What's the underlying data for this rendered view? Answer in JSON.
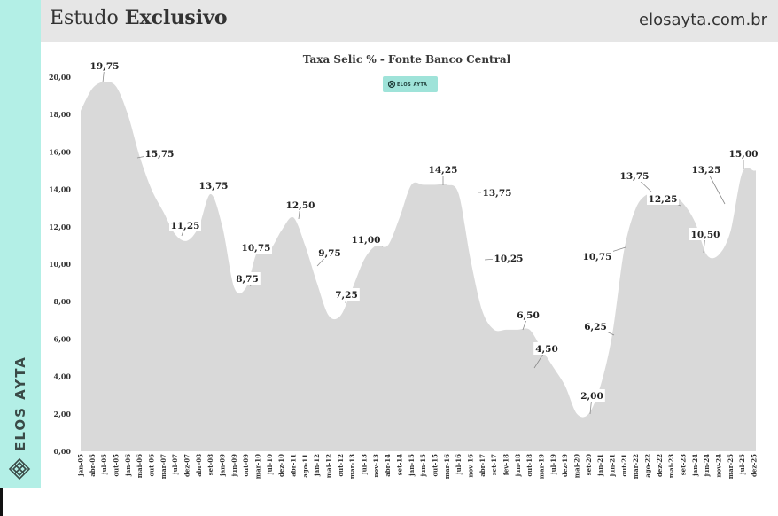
{
  "header": {
    "title_regular": "Estudo ",
    "title_bold": "Exclusivo",
    "site": "elosayta.com.br"
  },
  "sidebar": {
    "brand": "ELOS AYTA",
    "accent_color": "#b3efe6"
  },
  "colors": {
    "area_fill": "#d9d9d9",
    "label_box": "#ffffff",
    "badge_bg": "#9fe3d9"
  },
  "chart_data": {
    "type": "area",
    "title": "Taxa Selic % - Fonte Banco Central",
    "badge": "ELOS AYTA",
    "xlabel": "",
    "ylabel": "",
    "ylim": [
      0,
      20
    ],
    "grid": false,
    "y_ticks": [
      "0,00",
      "2,00",
      "4,00",
      "6,00",
      "8,00",
      "10,00",
      "12,00",
      "14,00",
      "16,00",
      "18,00",
      "20,00"
    ],
    "x_ticks": [
      "jan-05",
      "abr-05",
      "jul-05",
      "out-05",
      "jan-06",
      "mai-06",
      "out-06",
      "mar-07",
      "jul-07",
      "dez-07",
      "abr-08",
      "set-08",
      "jan-09",
      "jun-09",
      "out-09",
      "mar-10",
      "jul-10",
      "dez-10",
      "abr-11",
      "ago-11",
      "jan-12",
      "mai-12",
      "out-12",
      "mar-13",
      "jul-13",
      "nov-13",
      "abr-14",
      "set-14",
      "jan-15",
      "jun-15",
      "out-15",
      "mar-16",
      "jul-16",
      "nov-16",
      "abr-17",
      "set-17",
      "fev-18",
      "jun-18",
      "out-18",
      "mar-19",
      "jul-19",
      "dez-19",
      "mai-20",
      "set-20",
      "jan-21",
      "jun-21",
      "out-21",
      "mar-22",
      "ago-22",
      "dez-22",
      "mai-23",
      "set-23",
      "jan-24",
      "jun-24",
      "nov-24",
      "mar-25",
      "jul-25",
      "dez-25"
    ],
    "series": [
      {
        "x": [
          0,
          1,
          2,
          3,
          4,
          5,
          6,
          7,
          8,
          9,
          10,
          11,
          12,
          13,
          14,
          15,
          16,
          17,
          18,
          19,
          20,
          21,
          22,
          23,
          24,
          25,
          26,
          27,
          28,
          29,
          30,
          31,
          32,
          33,
          34,
          35,
          36,
          37,
          38,
          39,
          40,
          41,
          42,
          43,
          44,
          45,
          46,
          47,
          48,
          49,
          50,
          51,
          52,
          53,
          54,
          55,
          56,
          57
        ],
        "values": [
          18.2,
          19.4,
          19.75,
          19.5,
          18.0,
          15.75,
          14.0,
          12.8,
          11.6,
          11.25,
          12.0,
          13.75,
          12.0,
          8.75,
          8.75,
          10.75,
          10.75,
          11.8,
          12.5,
          11.0,
          9.0,
          7.25,
          7.25,
          8.7,
          10.25,
          11.0,
          11.0,
          12.5,
          14.25,
          14.25,
          14.25,
          14.25,
          13.75,
          10.25,
          7.5,
          6.5,
          6.5,
          6.5,
          6.5,
          5.5,
          4.5,
          3.5,
          2.0,
          2.0,
          3.5,
          6.25,
          10.75,
          13.0,
          13.75,
          13.75,
          13.75,
          13.25,
          12.25,
          10.5,
          10.5,
          11.75,
          14.9,
          15.0
        ]
      }
    ],
    "end_value": 15.0,
    "data_labels": [
      {
        "text": "19,75",
        "value": 19.75
      },
      {
        "text": "15,75",
        "value": 15.75
      },
      {
        "text": "11,25",
        "value": 11.25
      },
      {
        "text": "13,75",
        "value": 13.75
      },
      {
        "text": "8,75",
        "value": 8.75
      },
      {
        "text": "10,75",
        "value": 10.75
      },
      {
        "text": "12,50",
        "value": 12.5
      },
      {
        "text": "9,75",
        "value": 9.75
      },
      {
        "text": "7,25",
        "value": 7.25
      },
      {
        "text": "11,00",
        "value": 11.0
      },
      {
        "text": "14,25",
        "value": 14.25
      },
      {
        "text": "13,75",
        "value": 13.75
      },
      {
        "text": "10,25",
        "value": 10.25
      },
      {
        "text": "6,50",
        "value": 6.5
      },
      {
        "text": "4,50",
        "value": 4.5
      },
      {
        "text": "2,00",
        "value": 2.0
      },
      {
        "text": "6,25",
        "value": 6.25
      },
      {
        "text": "10,75",
        "value": 10.75
      },
      {
        "text": "13,75",
        "value": 13.75
      },
      {
        "text": "12,25",
        "value": 12.25
      },
      {
        "text": "10,50",
        "value": 10.5
      },
      {
        "text": "13,25",
        "value": 13.25
      },
      {
        "text": "15,00",
        "value": 15.0
      }
    ]
  }
}
